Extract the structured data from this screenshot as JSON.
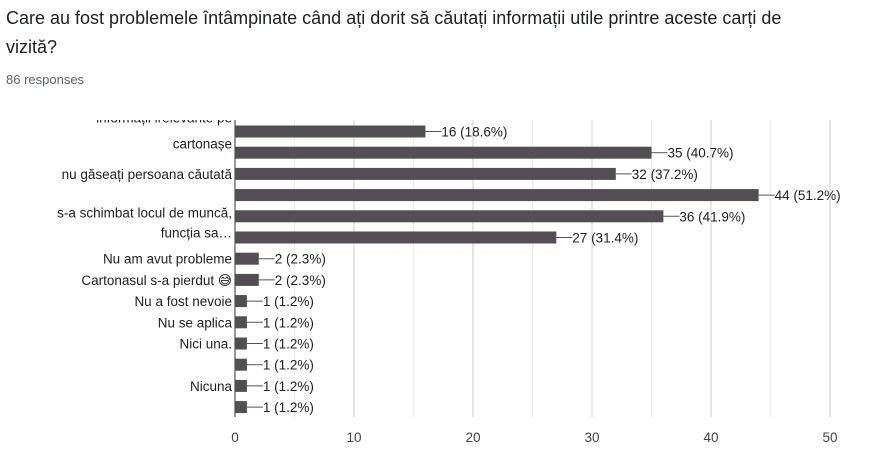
{
  "question": {
    "title": "Care au fost problemele întâmpinate când ați dorit să căutați informații utile printre aceste carți de vizită?",
    "responses": "86 responses"
  },
  "chart_data": {
    "type": "bar",
    "orientation": "horizontal",
    "bar_color": "#524e53",
    "bars": [
      {
        "label": [
          "informații irelevante pe",
          "cartonașe"
        ],
        "value": 16,
        "data_label": "16 (18.6%)"
      },
      {
        "label": [],
        "value": 35,
        "data_label": "35 (40.7%)"
      },
      {
        "label": [
          "nu găseați persoana căutată"
        ],
        "value": 32,
        "data_label": "32 (37.2%)"
      },
      {
        "label": [],
        "value": 44,
        "data_label": "44 (51.2%)"
      },
      {
        "label": [
          "s-a schimbat locul de muncă,",
          "funcția sa…"
        ],
        "value": 36,
        "data_label": "36 (41.9%)"
      },
      {
        "label": [],
        "value": 27,
        "data_label": "27 (31.4%)"
      },
      {
        "label": [
          "Nu am avut probleme"
        ],
        "value": 2,
        "data_label": "2 (2.3%)"
      },
      {
        "label": [
          "Cartonasul s-a pierdut 😅"
        ],
        "value": 2,
        "data_label": "2 (2.3%)"
      },
      {
        "label": [
          "Nu a fost nevoie"
        ],
        "value": 1,
        "data_label": "1 (1.2%)"
      },
      {
        "label": [
          "Nu se aplica"
        ],
        "value": 1,
        "data_label": "1 (1.2%)"
      },
      {
        "label": [
          "Nici una."
        ],
        "value": 1,
        "data_label": "1 (1.2%)"
      },
      {
        "label": [],
        "value": 1,
        "data_label": "1 (1.2%)"
      },
      {
        "label": [
          "Nicuna"
        ],
        "value": 1,
        "data_label": "1 (1.2%)"
      },
      {
        "label": [],
        "value": 1,
        "data_label": "1 (1.2%)"
      }
    ],
    "x_ticks": [
      0,
      10,
      20,
      30,
      40,
      50
    ],
    "xlim": [
      0,
      50
    ],
    "grid": true
  }
}
